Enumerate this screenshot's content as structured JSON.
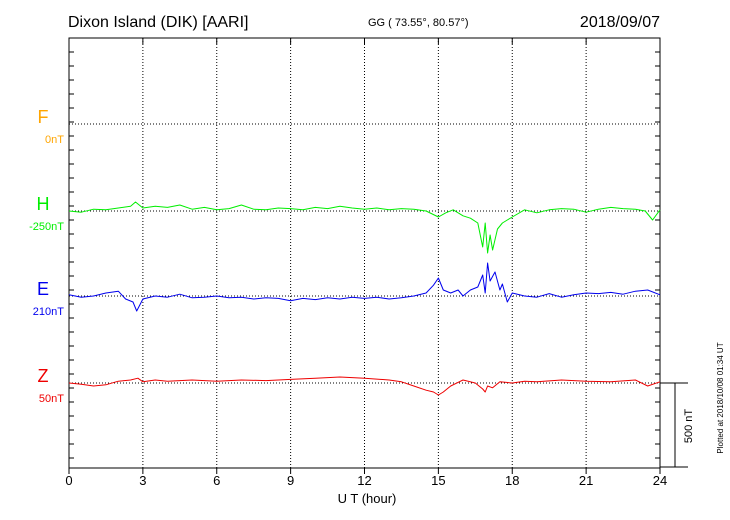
{
  "header": {
    "title": "Dixon Island (DIK)  [AARI]",
    "coords": "GG ( 73.55°,  80.57°)",
    "date": "2018/09/07"
  },
  "plotted_note": "Plotted at 2018/10/08 01:34 UT",
  "scale_bar_label": "500 nT",
  "chart_data": {
    "type": "line",
    "xlabel": "U T (hour)",
    "xlim": [
      0,
      24
    ],
    "xticks": [
      "0",
      "3",
      "6",
      "9",
      "12",
      "15",
      "18",
      "21",
      "24"
    ],
    "grid": true,
    "scale_nT": 500,
    "series": [
      {
        "name": "F",
        "baseline_label": "0nT",
        "color": "#ffa500",
        "x": [],
        "values": []
      },
      {
        "name": "H",
        "baseline_label": "-250nT",
        "color": "#00ee00",
        "x": [
          0,
          0.5,
          1.0,
          1.5,
          2.0,
          2.5,
          2.7,
          3.0,
          3.5,
          4.0,
          4.5,
          5.0,
          5.5,
          6.0,
          6.5,
          7.0,
          7.5,
          8.0,
          8.5,
          9.0,
          9.5,
          10.0,
          10.5,
          11.0,
          11.5,
          12.0,
          12.5,
          13.0,
          13.5,
          14.0,
          14.5,
          15.0,
          15.3,
          15.6,
          16.0,
          16.3,
          16.6,
          16.8,
          16.9,
          17.0,
          17.1,
          17.2,
          17.4,
          17.6,
          17.8,
          18.0,
          18.5,
          19.0,
          19.5,
          20.0,
          20.5,
          21.0,
          21.5,
          22.0,
          22.5,
          23.0,
          23.4,
          23.7,
          24.0
        ],
        "values": [
          0,
          -2,
          3,
          2,
          5,
          8,
          15,
          5,
          8,
          6,
          10,
          3,
          6,
          2,
          4,
          10,
          3,
          2,
          5,
          4,
          2,
          6,
          4,
          8,
          5,
          3,
          5,
          2,
          4,
          3,
          0,
          -10,
          -3,
          2,
          -8,
          -12,
          -20,
          -60,
          -20,
          -70,
          -40,
          -65,
          -30,
          -20,
          -15,
          -10,
          2,
          -3,
          2,
          4,
          3,
          -2,
          3,
          6,
          4,
          3,
          0,
          -15,
          2
        ]
      },
      {
        "name": "E",
        "baseline_label": "210nT",
        "color": "#0000ee",
        "x": [
          0,
          0.5,
          1.0,
          1.5,
          2.0,
          2.3,
          2.6,
          2.75,
          3.0,
          3.5,
          4.0,
          4.5,
          5.0,
          5.5,
          6.0,
          6.5,
          7.0,
          7.5,
          8.0,
          8.5,
          9.0,
          9.5,
          10.0,
          10.5,
          11.0,
          11.5,
          12.0,
          12.5,
          13.0,
          13.5,
          14.0,
          14.5,
          14.8,
          15.0,
          15.2,
          15.5,
          15.8,
          16.0,
          16.3,
          16.6,
          16.8,
          16.9,
          17.0,
          17.1,
          17.3,
          17.5,
          17.6,
          17.8,
          18.0,
          18.5,
          19.0,
          19.5,
          20.0,
          20.5,
          21.0,
          21.5,
          22.0,
          22.5,
          23.0,
          23.5,
          24.0
        ],
        "values": [
          2,
          -2,
          0,
          5,
          8,
          -5,
          -10,
          -25,
          -5,
          0,
          -2,
          3,
          -3,
          -2,
          0,
          -3,
          -2,
          -5,
          -3,
          -4,
          -8,
          -4,
          -6,
          -3,
          -5,
          -2,
          -4,
          -2,
          -5,
          -3,
          0,
          5,
          18,
          30,
          10,
          5,
          10,
          0,
          10,
          15,
          35,
          5,
          55,
          25,
          40,
          10,
          20,
          -10,
          5,
          0,
          -2,
          4,
          -2,
          2,
          5,
          4,
          6,
          3,
          8,
          10,
          2
        ]
      },
      {
        "name": "Z",
        "baseline_label": "50nT",
        "color": "#ee0000",
        "x": [
          0,
          0.5,
          1.0,
          1.5,
          2.0,
          2.5,
          2.8,
          3.0,
          3.5,
          4.0,
          5.0,
          6.0,
          7.0,
          8.0,
          9.0,
          10.0,
          11.0,
          12.0,
          13.0,
          13.5,
          14.0,
          14.5,
          14.8,
          15.0,
          15.2,
          15.5,
          16.0,
          16.5,
          16.8,
          16.9,
          17.0,
          17.2,
          17.5,
          18.0,
          18.5,
          19.0,
          20.0,
          21.0,
          22.0,
          23.0,
          23.5,
          24.0
        ],
        "values": [
          0,
          -2,
          -5,
          -3,
          3,
          5,
          8,
          2,
          5,
          3,
          5,
          3,
          5,
          4,
          6,
          8,
          10,
          8,
          5,
          2,
          -5,
          -12,
          -15,
          -20,
          -15,
          -5,
          5,
          0,
          -10,
          -15,
          -5,
          -8,
          2,
          0,
          3,
          2,
          5,
          3,
          2,
          5,
          -5,
          2
        ]
      }
    ]
  }
}
